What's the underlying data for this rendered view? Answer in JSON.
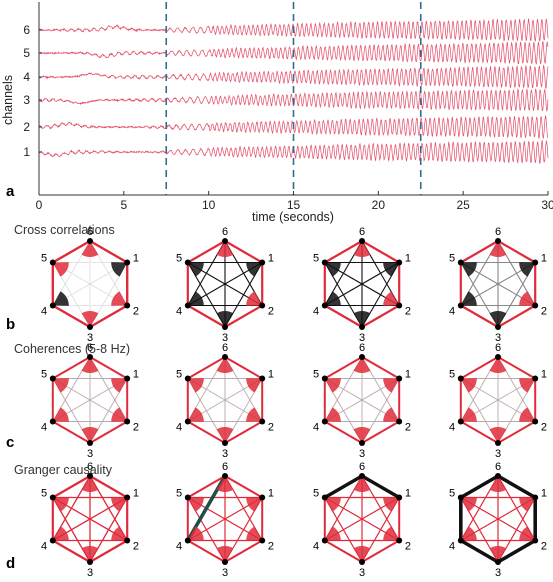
{
  "panel_a": {
    "label": "a",
    "y_axis_title": "channels",
    "x_axis_title": "time (seconds)",
    "x_ticks": [
      "0",
      "5",
      "10",
      "15",
      "20",
      "25",
      "30"
    ],
    "y_ticks": [
      "1",
      "2",
      "3",
      "4",
      "5",
      "6"
    ],
    "x_range": [
      0,
      30
    ],
    "dashed_markers_seconds": [
      7.5,
      15,
      22.5
    ],
    "trace_color": "#e03a58",
    "marker_color": "#2e6f8e"
  },
  "sections": [
    {
      "label": "b",
      "title": "Cross correlations"
    },
    {
      "label": "c",
      "title": "Coherences (5-8 Hz)"
    },
    {
      "label": "d",
      "title": "Granger causality"
    }
  ],
  "node_labels": [
    "1",
    "2",
    "3",
    "4",
    "5",
    "6"
  ],
  "colors": {
    "red": "#e02a3a",
    "dark": "#111111",
    "teal": "#1f4f4a",
    "gray": "#888888"
  }
}
